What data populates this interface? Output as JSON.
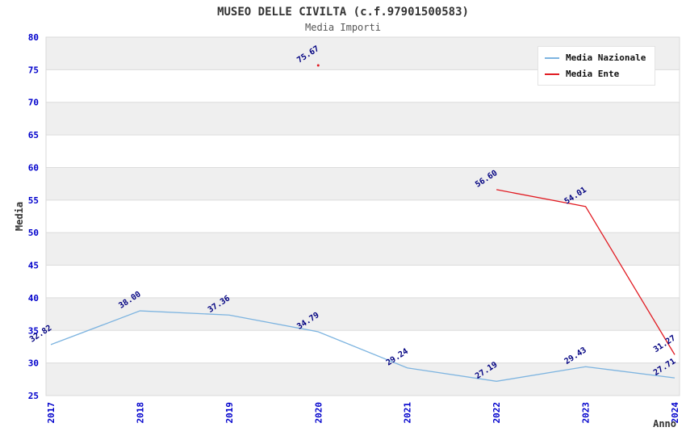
{
  "header": {
    "title": "MUSEO DELLE CIVILTA (c.f.97901500583)",
    "subtitle": "Media Importi"
  },
  "axes": {
    "ylabel": "Media",
    "xlabel": "Anno"
  },
  "legend": {
    "items": [
      {
        "label": "Media Nazionale"
      },
      {
        "label": "Media Ente"
      }
    ]
  },
  "colors": {
    "band_dark": "#efefef",
    "band_light": "#ffffff",
    "gridline": "#dcdcdc",
    "plot_border": "#d8d8d8",
    "tick_label": "#0000cc",
    "data_label": "#000080",
    "title": "#333333",
    "subtitle": "#555555",
    "nazionale_line": "#7db4e0",
    "ente_line": "#e11b22"
  },
  "chart_data": {
    "type": "line",
    "title": "MUSEO DELLE CIVILTA (c.f.97901500583)",
    "subtitle": "Media Importi",
    "x": [
      "2017",
      "2018",
      "2019",
      "2020",
      "2021",
      "2022",
      "2023",
      "2024"
    ],
    "xlabel": "Anno",
    "ylabel": "Media",
    "ylim": [
      25,
      80
    ],
    "ytick_step": 5,
    "grid": true,
    "alternate_bands": true,
    "legend_position": "top-right",
    "data_labels": true,
    "data_label_rotation": -33,
    "series": [
      {
        "name": "Media Nazionale",
        "color": "#7db4e0",
        "values": [
          32.82,
          38.0,
          37.36,
          34.79,
          29.24,
          27.19,
          29.43,
          27.71
        ]
      },
      {
        "name": "Media Ente",
        "color": "#e11b22",
        "values": [
          null,
          null,
          null,
          75.67,
          null,
          56.6,
          54.01,
          31.27
        ]
      }
    ]
  }
}
